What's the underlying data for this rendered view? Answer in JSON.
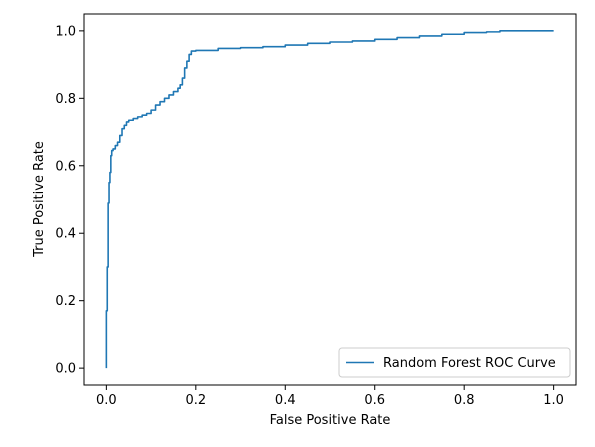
{
  "chart_data": {
    "type": "line",
    "title": "",
    "xlabel": "False Positive Rate",
    "ylabel": "True Positive Rate",
    "xlim": [
      -0.05,
      1.05
    ],
    "ylim": [
      -0.05,
      1.05
    ],
    "xticks": [
      0.0,
      0.2,
      0.4,
      0.6,
      0.8,
      1.0
    ],
    "yticks": [
      0.0,
      0.2,
      0.4,
      0.6,
      0.8,
      1.0
    ],
    "xtick_labels": [
      "0.0",
      "0.2",
      "0.4",
      "0.6",
      "0.8",
      "1.0"
    ],
    "ytick_labels": [
      "0.0",
      "0.2",
      "0.4",
      "0.6",
      "0.8",
      "1.0"
    ],
    "grid": false,
    "legend_position": "lower-right",
    "series": [
      {
        "name": "Random Forest ROC Curve",
        "color": "#1f77b4",
        "x": [
          0.0,
          0.0,
          0.002,
          0.004,
          0.004,
          0.006,
          0.008,
          0.01,
          0.012,
          0.015,
          0.02,
          0.025,
          0.03,
          0.035,
          0.04,
          0.045,
          0.05,
          0.06,
          0.07,
          0.08,
          0.09,
          0.1,
          0.11,
          0.12,
          0.13,
          0.14,
          0.15,
          0.16,
          0.165,
          0.17,
          0.175,
          0.18,
          0.185,
          0.19,
          0.2,
          0.25,
          0.3,
          0.35,
          0.4,
          0.45,
          0.5,
          0.55,
          0.6,
          0.65,
          0.7,
          0.75,
          0.8,
          0.85,
          0.88,
          0.9,
          0.95,
          1.0
        ],
        "y": [
          0.0,
          0.17,
          0.3,
          0.44,
          0.49,
          0.55,
          0.58,
          0.63,
          0.645,
          0.65,
          0.66,
          0.67,
          0.69,
          0.71,
          0.72,
          0.73,
          0.735,
          0.74,
          0.745,
          0.75,
          0.755,
          0.765,
          0.78,
          0.79,
          0.8,
          0.81,
          0.82,
          0.83,
          0.84,
          0.86,
          0.89,
          0.91,
          0.93,
          0.94,
          0.942,
          0.948,
          0.95,
          0.953,
          0.958,
          0.963,
          0.967,
          0.97,
          0.975,
          0.98,
          0.985,
          0.99,
          0.995,
          0.997,
          1.0,
          1.0,
          1.0,
          1.0
        ]
      }
    ]
  }
}
